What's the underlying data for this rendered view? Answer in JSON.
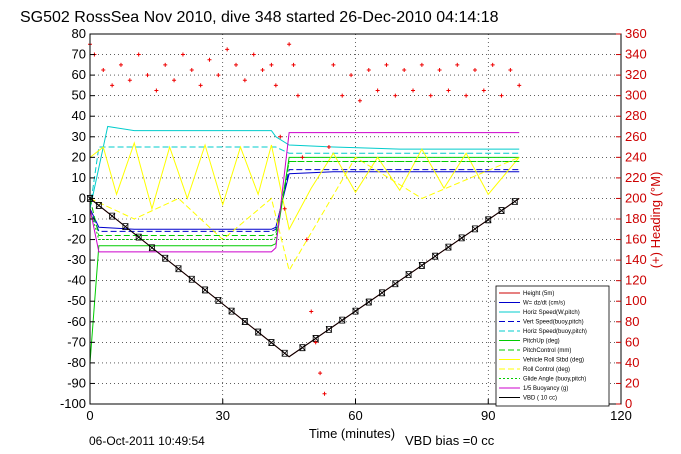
{
  "chart_data": {
    "type": "line",
    "title": "SG502 RossSea Nov 2010, dive 348 started 26-Dec-2010 04:14:18",
    "xlabel": "Time (minutes)",
    "ylabel": "",
    "y2label": "(+) Heading (°M)",
    "xlim": [
      0,
      120
    ],
    "ylim": [
      -100,
      80
    ],
    "y2lim": [
      0,
      360
    ],
    "xticks": [
      0,
      30,
      60,
      90,
      120
    ],
    "yticks": [
      -100,
      -90,
      -80,
      -70,
      -60,
      -50,
      -40,
      -30,
      -20,
      -10,
      0,
      10,
      20,
      30,
      40,
      50,
      60,
      70,
      80
    ],
    "y2ticks": [
      0,
      20,
      40,
      60,
      80,
      100,
      120,
      140,
      160,
      180,
      200,
      220,
      240,
      260,
      280,
      300,
      320,
      340,
      360
    ],
    "grid": true,
    "legend_position": "bottom-right",
    "annotations": {
      "date_printed": "06-Oct-2011 10:49:54",
      "vbd_bias": "VBD bias =0 cc"
    },
    "colors": {
      "height": "#cc0000",
      "w": "#0000cc",
      "horiz": "#00cccc",
      "pitchup": "#00cc00",
      "roll": "#ffff00",
      "buoyancy": "#cc00cc",
      "vbd": "#000000",
      "heading": "#ee0000"
    },
    "series": [
      {
        "name": "Height (5m)",
        "color": "#cc0000",
        "dash": "",
        "x": [
          0,
          45,
          97
        ],
        "y": [
          0,
          -77,
          0
        ]
      },
      {
        "name": "W= dz/dt (cm/s)",
        "color": "#0000cc",
        "dash": "",
        "x": [
          0,
          2,
          10,
          20,
          30,
          41,
          42,
          45,
          55,
          70,
          85,
          97
        ],
        "y": [
          -5,
          -14,
          -15,
          -15,
          -15,
          -15,
          -14,
          12,
          13,
          13,
          13,
          13
        ]
      },
      {
        "name": "Horiz Speed(W,pitch)",
        "color": "#00cccc",
        "dash": "",
        "x": [
          0,
          4,
          10,
          20,
          30,
          41,
          42,
          45,
          55,
          70,
          85,
          97
        ],
        "y": [
          -5,
          35,
          33,
          33,
          33,
          33,
          30,
          26,
          25,
          24,
          24,
          24
        ]
      },
      {
        "name": "Vert Speed(buoy,pitch)",
        "color": "#0000cc",
        "dash": "6,3",
        "x": [
          0,
          2,
          20,
          41,
          42,
          45,
          70,
          97
        ],
        "y": [
          -5,
          -16,
          -16,
          -16,
          -15,
          14,
          14,
          14
        ]
      },
      {
        "name": "Horiz Speed(buoy,pitch)",
        "color": "#00cccc",
        "dash": "6,3",
        "x": [
          0,
          2,
          20,
          41,
          42,
          45,
          70,
          97
        ],
        "y": [
          -5,
          25,
          25,
          25,
          25,
          22,
          22,
          22
        ]
      },
      {
        "name": "PitchUp (deg)",
        "color": "#00cc00",
        "dash": "",
        "x": [
          0,
          2,
          20,
          41,
          42,
          45,
          70,
          97
        ],
        "y": [
          -80,
          -23,
          -23,
          -23,
          -22,
          20,
          20,
          20
        ]
      },
      {
        "name": "PitchControl (mm)",
        "color": "#00cc00",
        "dash": "6,3",
        "x": [
          0,
          2,
          20,
          41,
          42,
          45,
          70,
          97
        ],
        "y": [
          0,
          -18,
          -18,
          -18,
          -17,
          18,
          18,
          18
        ]
      },
      {
        "name": "Vehicle Roll Stbd (deg)",
        "color": "#ffff00",
        "dash": "",
        "x": [
          0,
          3,
          6,
          10,
          14,
          18,
          22,
          26,
          30,
          34,
          38,
          41,
          45,
          50,
          55,
          60,
          65,
          70,
          75,
          80,
          85,
          90,
          97
        ],
        "y": [
          20,
          25,
          2,
          27,
          -5,
          25,
          0,
          26,
          -3,
          25,
          2,
          26,
          -15,
          5,
          22,
          3,
          20,
          4,
          24,
          5,
          22,
          2,
          20
        ]
      },
      {
        "name": "Roll Control (deg)",
        "color": "#ffff00",
        "dash": "6,3",
        "x": [
          0,
          10,
          20,
          30,
          41,
          45,
          60,
          75,
          97
        ],
        "y": [
          0,
          -10,
          0,
          -20,
          0,
          -35,
          20,
          0,
          20
        ]
      },
      {
        "name": "Glide Angle (buoy,pitch)",
        "color": "#00cc00",
        "dash": "2,2",
        "x": [
          0,
          2,
          20,
          41,
          42,
          45,
          70,
          97
        ],
        "y": [
          -5,
          -20,
          -20,
          -20,
          -19,
          18,
          18,
          18
        ]
      },
      {
        "name": "1/5 Buoyancy (g)",
        "color": "#cc00cc",
        "dash": "",
        "x": [
          0,
          2,
          20,
          41,
          42,
          45,
          70,
          97
        ],
        "y": [
          -5,
          -26,
          -26,
          -26,
          -24,
          32,
          32,
          32
        ]
      },
      {
        "name": "VBD ( 10 cc)",
        "color": "#000000",
        "dash": "",
        "x": [
          0,
          45,
          97
        ],
        "y": [
          0,
          -77,
          0
        ]
      }
    ],
    "heading_series": {
      "name": "Heading (+)",
      "color": "#ee0000",
      "x": [
        0,
        1,
        3,
        5,
        7,
        9,
        11,
        13,
        15,
        17,
        19,
        21,
        23,
        25,
        27,
        29,
        31,
        33,
        35,
        37,
        39,
        41,
        42,
        43,
        44,
        45,
        46,
        47,
        48,
        49,
        50,
        51,
        52,
        53,
        54,
        55,
        57,
        59,
        61,
        63,
        65,
        67,
        69,
        71,
        73,
        75,
        77,
        79,
        81,
        83,
        85,
        87,
        89,
        91,
        93,
        95,
        97
      ],
      "y": [
        350,
        340,
        325,
        310,
        330,
        315,
        340,
        320,
        305,
        330,
        315,
        340,
        325,
        310,
        335,
        320,
        345,
        330,
        315,
        340,
        325,
        330,
        310,
        260,
        190,
        350,
        330,
        300,
        240,
        160,
        90,
        60,
        30,
        10,
        250,
        330,
        300,
        320,
        295,
        325,
        305,
        330,
        300,
        325,
        305,
        330,
        300,
        325,
        305,
        330,
        300,
        325,
        305,
        330,
        300,
        325,
        310
      ]
    },
    "height_markers": {
      "x": [
        0,
        2,
        5,
        8,
        11,
        14,
        17,
        20,
        23,
        26,
        29,
        32,
        35,
        38,
        41,
        44,
        48,
        51,
        54,
        57,
        60,
        63,
        66,
        69,
        72,
        75,
        78,
        81,
        84,
        87,
        90,
        93,
        96
      ],
      "y": [
        0,
        -3.4,
        -8.6,
        -13.7,
        -18.8,
        -24.0,
        -29.1,
        -34.2,
        -39.3,
        -44.5,
        -49.6,
        -54.8,
        -59.9,
        -65.0,
        -70.1,
        -75.3,
        -72.6,
        -68.1,
        -63.7,
        -59.2,
        -54.8,
        -50.4,
        -45.9,
        -41.5,
        -37.0,
        -32.6,
        -28.1,
        -23.7,
        -19.2,
        -14.8,
        -10.4,
        -5.9,
        -1.5
      ]
    }
  }
}
